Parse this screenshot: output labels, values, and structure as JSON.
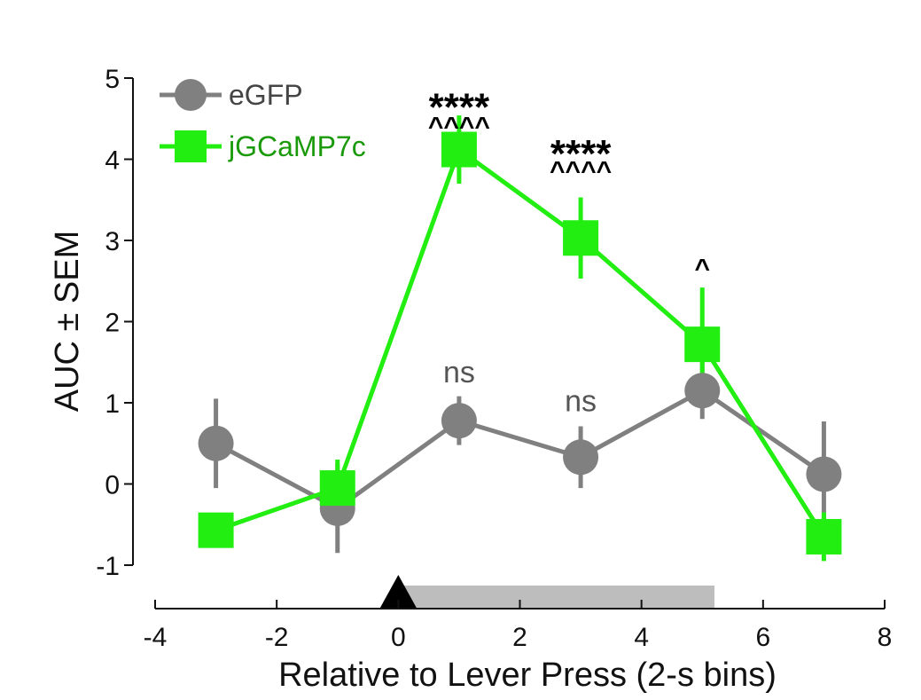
{
  "chart_data": {
    "type": "line",
    "title": "",
    "xlabel": "Relative to Lever Press (2-s bins)",
    "ylabel": "AUC ± SEM",
    "xlim": [
      -4,
      8
    ],
    "ylim": [
      -1,
      5
    ],
    "xticks": [
      -4,
      -2,
      0,
      2,
      4,
      6,
      8
    ],
    "xtick_labels": [
      "-4",
      "-2",
      "0",
      "2",
      "4",
      "6",
      "8"
    ],
    "yticks": [
      -1,
      0,
      1,
      2,
      3,
      4,
      5
    ],
    "ytick_labels": [
      "-1",
      "0",
      "1",
      "2",
      "3",
      "4",
      "5"
    ],
    "grid": false,
    "legend_position": "top-left",
    "x": [
      -3,
      -1,
      1,
      3,
      5,
      7
    ],
    "series": [
      {
        "name": "eGFP",
        "marker": "circle",
        "color": "#808080",
        "values": [
          0.5,
          -0.3,
          0.78,
          0.33,
          1.15,
          0.12
        ],
        "errors": [
          0.55,
          0.55,
          0.3,
          0.38,
          0.35,
          0.65
        ]
      },
      {
        "name": "jGCaMP7c",
        "marker": "square",
        "color": "#22ee11",
        "values": [
          -0.57,
          -0.05,
          4.12,
          3.03,
          1.72,
          -0.65
        ],
        "errors": [
          0.05,
          0.35,
          0.42,
          0.5,
          0.7,
          0.3
        ]
      }
    ],
    "event_marker": {
      "x": 0,
      "label_shape": "triangle"
    },
    "event_bar": {
      "start": 0,
      "end": 5.2
    },
    "annotations": [
      {
        "x": 1,
        "y": 4.72,
        "text": "****",
        "style": "star"
      },
      {
        "x": 1,
        "y": 4.45,
        "text": "^^^^",
        "style": "caret"
      },
      {
        "x": 3,
        "y": 4.15,
        "text": "****",
        "style": "star"
      },
      {
        "x": 3,
        "y": 3.9,
        "text": "^^^^",
        "style": "caret"
      },
      {
        "x": 5,
        "y": 2.7,
        "text": "^",
        "style": "caret"
      },
      {
        "x": 1,
        "y": 1.38,
        "text": "ns",
        "style": "ns"
      },
      {
        "x": 3,
        "y": 1.03,
        "text": "ns",
        "style": "ns"
      }
    ]
  }
}
